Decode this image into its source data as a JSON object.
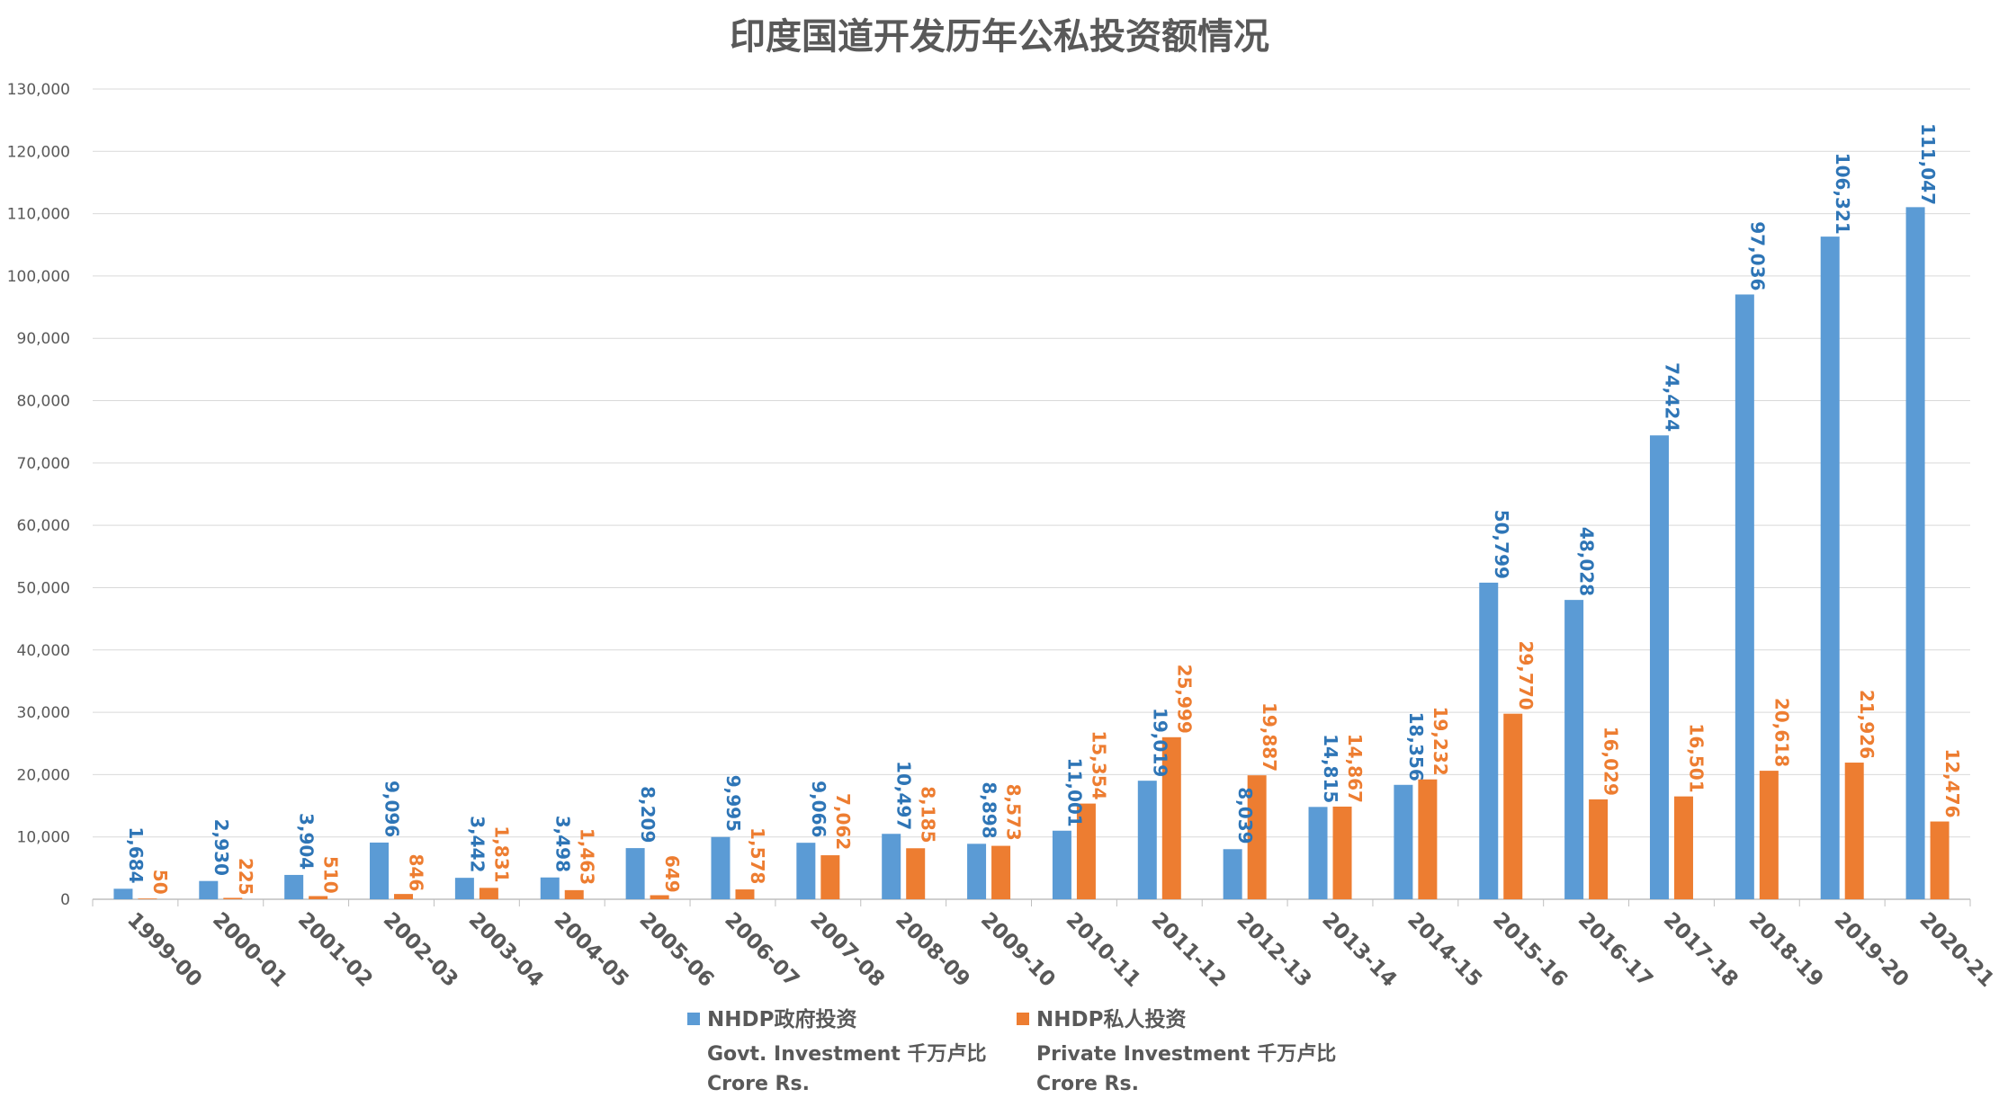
{
  "chart_data": {
    "type": "bar",
    "title": "印度国道开发历年公私投资额情况",
    "categories": [
      "1999-00",
      "2000-01",
      "2001-02",
      "2002-03",
      "2003-04",
      "2004-05",
      "2005-06",
      "2006-07",
      "2007-08",
      "2008-09",
      "2009-10",
      "2010-11",
      "2011-12",
      "2012-13",
      "2013-14",
      "2014-15",
      "2015-16",
      "2016-17",
      "2017-18",
      "2018-19",
      "2019-20",
      "2020-21"
    ],
    "series": [
      {
        "name": "NHDP政府投资",
        "name_line2": "Govt. Investment 千万卢比",
        "name_line3": "Crore Rs.",
        "color": "#5b9bd5",
        "label_color": "#2e75b6",
        "values": [
          1684,
          2930,
          3904,
          9096,
          3442,
          3498,
          8209,
          9995,
          9066,
          10497,
          8898,
          11001,
          19019,
          8039,
          14815,
          18356,
          50799,
          48028,
          74424,
          97036,
          106321,
          111047
        ]
      },
      {
        "name": "NHDP私人投资",
        "name_line2": "Private Investment 千万卢比",
        "name_line3": "Crore Rs.",
        "color": "#ed7d31",
        "label_color": "#ed7d31",
        "values": [
          50,
          225,
          510,
          846,
          1831,
          1463,
          649,
          1578,
          7062,
          8185,
          8573,
          15354,
          25999,
          19887,
          14867,
          19232,
          29770,
          16029,
          16501,
          20618,
          21926,
          12476
        ]
      }
    ],
    "ylim": [
      0,
      130000
    ],
    "ytick_step": 10000,
    "xlabel": "",
    "ylabel": "",
    "grid": true,
    "legend": "bottom"
  }
}
